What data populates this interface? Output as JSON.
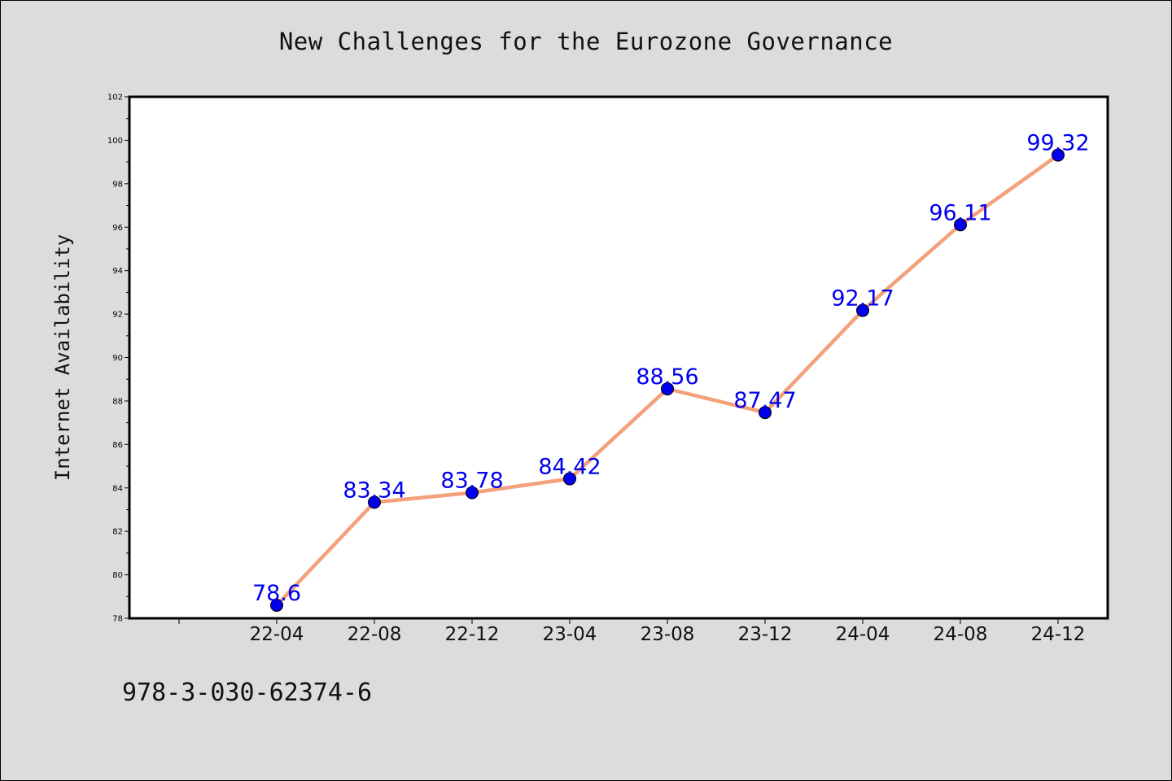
{
  "title": "New Challenges for the Eurozone Governance",
  "footer_text": "978-3-030-62374-6",
  "chart_data": {
    "type": "line",
    "title": "New Challenges for the Eurozone Governance",
    "xlabel": "",
    "ylabel": "Internet Availability",
    "categories": [
      "22-04",
      "22-08",
      "22-12",
      "23-04",
      "23-08",
      "23-12",
      "24-04",
      "24-08",
      "24-12"
    ],
    "series": [
      {
        "values": [
          78.6,
          83.34,
          83.78,
          84.42,
          88.56,
          87.47,
          92.17,
          96.11,
          99.32
        ],
        "labels": [
          "78.6",
          "83.34",
          "83.78",
          "84.42",
          "88.56",
          "87.47",
          "92.17",
          "96.11",
          "99.32"
        ],
        "line_color": "#f4a07a",
        "marker_color": "#0000ee",
        "label_color": "#0000ee"
      }
    ],
    "ylim": [
      78,
      102
    ],
    "y_ticks": [
      "78",
      "80",
      "82",
      "84",
      "86",
      "88",
      "90",
      "92",
      "94",
      "96",
      "98",
      "100",
      "102"
    ],
    "grid": false,
    "legend": "none",
    "plot_background": "#ffffff",
    "page_background": "#dcdcdc"
  }
}
